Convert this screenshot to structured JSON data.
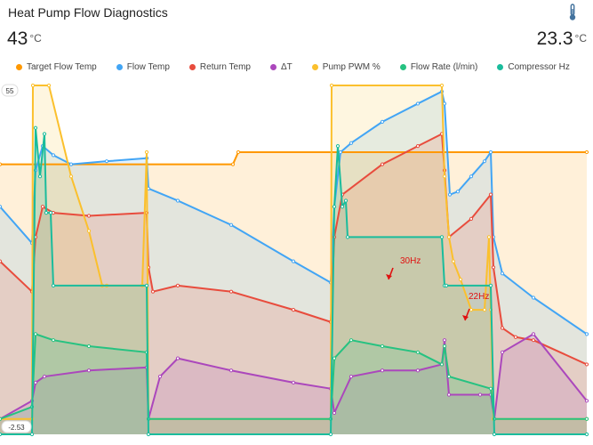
{
  "card": {
    "title": "Heat Pump Flow Diagnostics",
    "icon": "thermometer-icon",
    "state_left": {
      "value": "43",
      "unit": "°C"
    },
    "state_right": {
      "value": "23.3",
      "unit": "°C"
    }
  },
  "chart_data": {
    "type": "area",
    "ylim": [
      -2.53,
      55
    ],
    "y_tick_labels": [
      "55",
      "-2.53"
    ],
    "annotations": [
      {
        "text": "30Hz",
        "color": "#e01010"
      },
      {
        "text": "22Hz",
        "color": "#e01010"
      }
    ],
    "series": [
      {
        "name": "Target Flow Temp",
        "color": "#ff9800",
        "x": [
          0,
          262,
          268,
          660
        ],
        "values": [
          42,
          42,
          44,
          44
        ]
      },
      {
        "name": "Flow Temp",
        "color": "#42a5f5",
        "x": [
          0,
          36,
          40,
          48,
          60,
          80,
          120,
          165,
          167,
          200,
          260,
          330,
          372,
          376,
          383,
          395,
          430,
          470,
          497,
          500,
          506,
          515,
          530,
          545,
          552,
          555,
          565,
          600,
          660
        ],
        "values": [
          35,
          29,
          41,
          45,
          43.5,
          42,
          42.5,
          43,
          38,
          36,
          32,
          26,
          22.5,
          35,
          44,
          45.5,
          49,
          52,
          54,
          52,
          37,
          37.5,
          40,
          42.5,
          44,
          30,
          24,
          20,
          14
        ]
      },
      {
        "name": "Return Temp",
        "color": "#e84c3d",
        "x": [
          0,
          36,
          40,
          48,
          60,
          100,
          165,
          167,
          172,
          200,
          260,
          330,
          372,
          376,
          385,
          430,
          470,
          497,
          500,
          505,
          530,
          552,
          555,
          565,
          580,
          600,
          660
        ],
        "values": [
          26,
          21,
          30,
          35,
          34,
          33.5,
          34,
          25,
          21,
          22,
          21,
          18,
          16,
          30,
          37,
          42,
          45,
          47,
          41,
          30,
          33,
          37,
          25,
          15,
          13.5,
          13,
          9
        ]
      },
      {
        "name": "ΔT",
        "color": "#ab47bc",
        "x": [
          0,
          36,
          40,
          50,
          100,
          165,
          167,
          180,
          200,
          260,
          330,
          372,
          376,
          395,
          430,
          470,
          497,
          500,
          505,
          540,
          552,
          556,
          565,
          600,
          660
        ],
        "values": [
          0,
          3,
          6,
          7,
          8,
          8.5,
          0,
          7,
          10,
          8,
          6,
          5,
          1,
          7,
          8,
          8,
          9,
          13,
          4,
          4,
          4,
          0,
          11,
          14,
          3
        ]
      },
      {
        "name": "Pump PWM %",
        "color": "#fbc02d",
        "x": [
          0,
          36,
          37,
          55,
          80,
          100,
          115,
          120,
          160,
          165,
          167,
          372,
          373,
          497,
          500,
          505,
          510,
          518,
          530,
          545,
          550,
          552,
          555,
          660
        ],
        "values": [
          0,
          0,
          55,
          55,
          40,
          31,
          22,
          22,
          22,
          44,
          0,
          0,
          55,
          55,
          40,
          30,
          26,
          23,
          18,
          18,
          30,
          18,
          0,
          0
        ]
      },
      {
        "name": "Flow Rate (l/min)",
        "color": "#26c281",
        "x": [
          0,
          36,
          40,
          60,
          100,
          165,
          167,
          372,
          376,
          395,
          430,
          470,
          497,
          500,
          505,
          552,
          556,
          660
        ],
        "values": [
          0,
          2,
          14,
          13,
          12,
          11,
          0,
          0,
          10,
          13,
          12,
          11,
          9,
          12,
          7,
          5,
          0,
          0
        ]
      },
      {
        "name": "Compressor Hz",
        "color": "#1abc9c",
        "x": [
          0,
          36,
          40,
          45,
          50,
          52,
          57,
          60,
          165,
          167,
          372,
          376,
          380,
          385,
          389,
          391,
          497,
          500,
          502,
          552,
          556,
          660
        ],
        "values": [
          -2.53,
          -2.53,
          48,
          40,
          47,
          34,
          34,
          22,
          22,
          -2.53,
          -2.53,
          35,
          45,
          35,
          36,
          30,
          30,
          22,
          22,
          22,
          -2.53,
          -2.53
        ]
      }
    ]
  }
}
